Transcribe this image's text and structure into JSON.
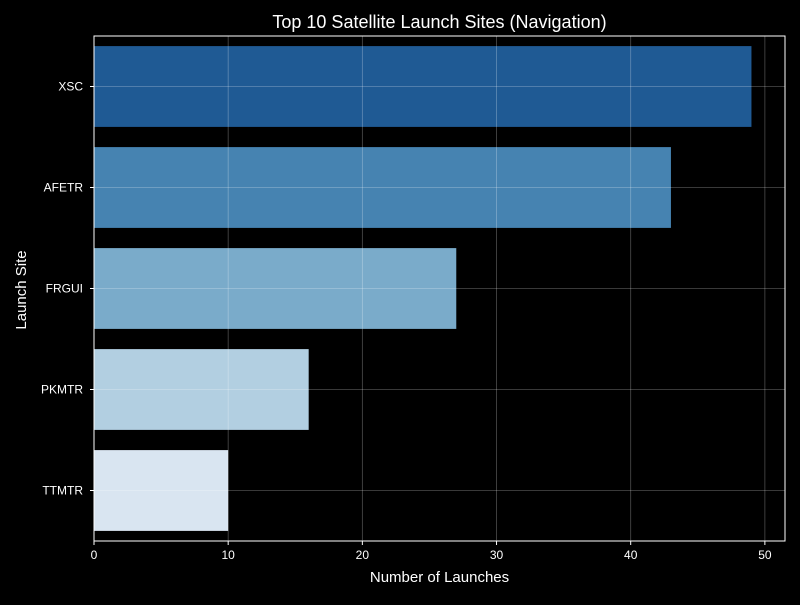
{
  "chart_data": {
    "type": "bar",
    "orientation": "horizontal",
    "title": "Top 10 Satellite Launch Sites (Navigation)",
    "xlabel": "Number of Launches",
    "ylabel": "Launch Site",
    "categories": [
      "XSC",
      "AFETR",
      "FRGUI",
      "PKMTR",
      "TTMTR"
    ],
    "values": [
      49,
      43,
      27,
      16,
      10
    ],
    "bar_colors": [
      "#1f5a94",
      "#4683b1",
      "#7aabca",
      "#b2cfe1",
      "#d9e5f1"
    ],
    "xlim": [
      0,
      51.5
    ],
    "xticks": [
      0,
      10,
      20,
      30,
      40,
      50
    ],
    "grid": true,
    "legend": "none",
    "background_color": "#000000",
    "text_color": "#ffffff"
  }
}
